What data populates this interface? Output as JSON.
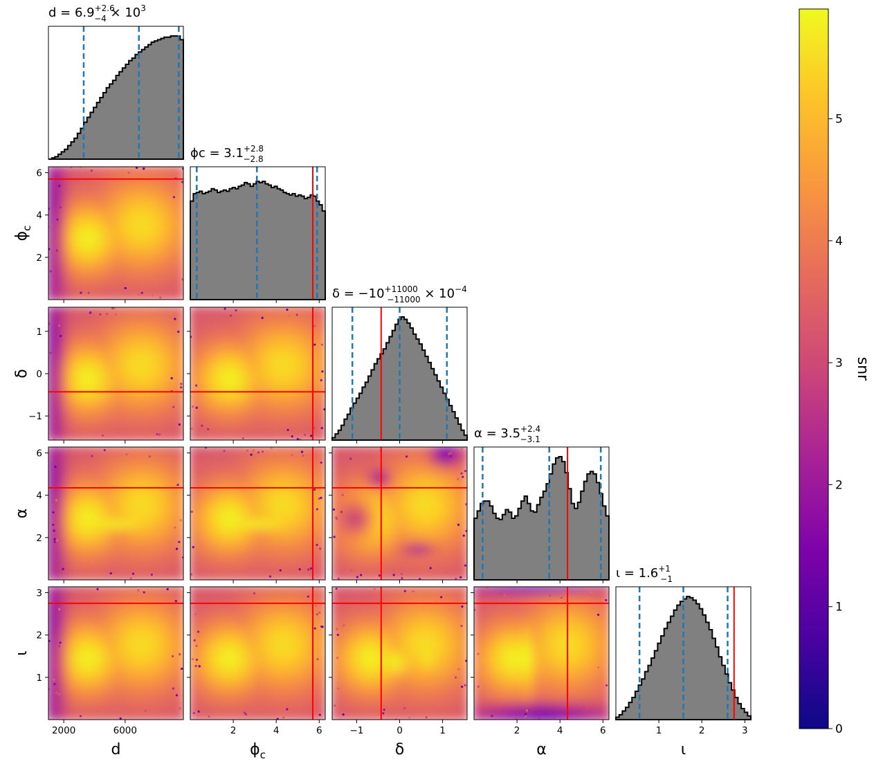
{
  "chart_data": {
    "type": "corner",
    "params": [
      {
        "key": "d",
        "label": "d",
        "range": [
          1000,
          9800
        ],
        "ticks": [
          2000,
          6000
        ],
        "tick_labels": [
          "2000",
          "6000"
        ],
        "title": {
          "main": "d = 6.9",
          "sup": "+2.6",
          "sub": "−4",
          "tail": " × 10",
          "tail_sup": "3"
        },
        "quantiles": [
          3300,
          6900,
          9500
        ],
        "truth": null
      },
      {
        "key": "phi_c",
        "label": "ϕ_c",
        "range": [
          0,
          6.28
        ],
        "ticks": [
          2,
          4,
          6
        ],
        "tick_labels": [
          "2",
          "4",
          "6"
        ],
        "title": {
          "main": "ϕc = 3.1",
          "sup": "+2.8",
          "sub": "−2.8",
          "tail": "",
          "tail_sup": ""
        },
        "quantiles": [
          0.3,
          3.1,
          5.9
        ],
        "truth": 5.7
      },
      {
        "key": "delta",
        "label": "δ",
        "range": [
          -1.57,
          1.57
        ],
        "ticks": [
          -1,
          0,
          1
        ],
        "tick_labels": [
          "−1",
          "0",
          "1"
        ],
        "title": {
          "main": "δ = −10",
          "sup": "+11000",
          "sub": "−11000",
          "tail": " × 10",
          "tail_sup": "−4"
        },
        "quantiles": [
          -1.1,
          0.0,
          1.1
        ],
        "truth": -0.43
      },
      {
        "key": "alpha",
        "label": "α",
        "range": [
          0,
          6.28
        ],
        "ticks": [
          2,
          4,
          6
        ],
        "tick_labels": [
          "2",
          "4",
          "6"
        ],
        "title": {
          "main": "α = 3.5",
          "sup": "+2.4",
          "sub": "−3.1",
          "tail": "",
          "tail_sup": ""
        },
        "quantiles": [
          0.4,
          3.5,
          5.9
        ],
        "truth": 4.35
      },
      {
        "key": "iota",
        "label": "ι",
        "range": [
          0,
          3.14
        ],
        "ticks": [
          1,
          2,
          3
        ],
        "tick_labels": [
          "1",
          "2",
          "3"
        ],
        "title": {
          "main": "ι = 1.6",
          "sup": "+1",
          "sub": "−1",
          "tail": "",
          "tail_sup": ""
        },
        "quantiles": [
          0.55,
          1.57,
          2.6
        ],
        "truth": 2.75
      }
    ],
    "histograms": {
      "d": [
        0.0,
        0.01,
        0.02,
        0.04,
        0.06,
        0.08,
        0.11,
        0.14,
        0.17,
        0.21,
        0.25,
        0.3,
        0.34,
        0.38,
        0.42,
        0.46,
        0.5,
        0.54,
        0.58,
        0.61,
        0.64,
        0.68,
        0.71,
        0.74,
        0.77,
        0.8,
        0.82,
        0.85,
        0.87,
        0.89,
        0.91,
        0.93,
        0.95,
        0.96,
        0.97,
        0.98,
        0.99,
        0.99,
        1.0,
        1.0,
        1.0,
        0.97
      ],
      "phi_c": [
        0.8,
        0.86,
        0.87,
        0.88,
        0.86,
        0.87,
        0.88,
        0.9,
        0.89,
        0.87,
        0.88,
        0.89,
        0.88,
        0.9,
        0.91,
        0.9,
        0.92,
        0.93,
        0.95,
        0.94,
        0.92,
        0.94,
        0.96,
        0.95,
        0.96,
        0.94,
        0.93,
        0.91,
        0.92,
        0.9,
        0.89,
        0.87,
        0.86,
        0.85,
        0.86,
        0.84,
        0.85,
        0.84,
        0.82,
        0.83,
        0.85,
        0.84,
        0.8,
        0.77,
        0.72
      ],
      "delta": [
        0.02,
        0.05,
        0.08,
        0.12,
        0.17,
        0.21,
        0.26,
        0.3,
        0.34,
        0.38,
        0.43,
        0.47,
        0.52,
        0.57,
        0.62,
        0.66,
        0.7,
        0.74,
        0.79,
        0.84,
        0.89,
        0.94,
        0.98,
        1.0,
        0.98,
        0.95,
        0.91,
        0.86,
        0.82,
        0.78,
        0.73,
        0.68,
        0.63,
        0.58,
        0.53,
        0.48,
        0.43,
        0.38,
        0.33,
        0.28,
        0.23,
        0.18,
        0.13,
        0.08,
        0.04
      ],
      "alpha": [
        0.5,
        0.56,
        0.62,
        0.64,
        0.64,
        0.6,
        0.54,
        0.5,
        0.49,
        0.53,
        0.57,
        0.55,
        0.5,
        0.52,
        0.58,
        0.64,
        0.68,
        0.62,
        0.56,
        0.55,
        0.61,
        0.67,
        0.72,
        0.78,
        0.86,
        0.94,
        0.99,
        1.0,
        0.96,
        0.87,
        0.74,
        0.62,
        0.58,
        0.63,
        0.72,
        0.8,
        0.86,
        0.88,
        0.86,
        0.79,
        0.7,
        0.6,
        0.52
      ],
      "iota": [
        0.02,
        0.04,
        0.07,
        0.1,
        0.14,
        0.18,
        0.23,
        0.28,
        0.33,
        0.39,
        0.44,
        0.5,
        0.56,
        0.62,
        0.68,
        0.74,
        0.79,
        0.84,
        0.89,
        0.93,
        0.96,
        0.98,
        1.0,
        0.99,
        0.97,
        0.94,
        0.9,
        0.85,
        0.79,
        0.73,
        0.66,
        0.59,
        0.51,
        0.44,
        0.37,
        0.3,
        0.24,
        0.18,
        0.13,
        0.09,
        0.06,
        0.03
      ]
    },
    "colorbar": {
      "label": "snr",
      "range": [
        0,
        5.9
      ],
      "ticks": [
        0,
        1,
        2,
        3,
        4,
        5
      ],
      "colormap": "plasma"
    },
    "colors": {
      "histogram_fill": "#808080",
      "histogram_edge": "#000000",
      "quantile_line": "#1f77b4",
      "truth_line": "#ff0000"
    }
  }
}
